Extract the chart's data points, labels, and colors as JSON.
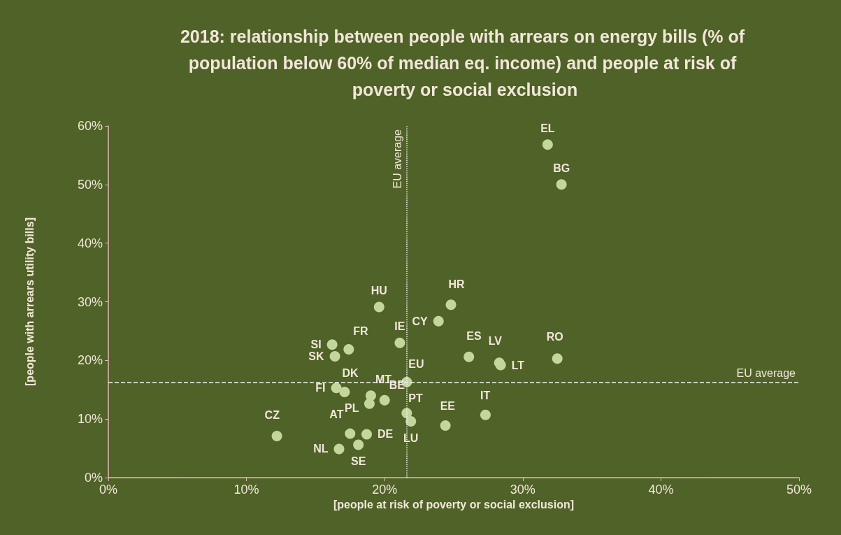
{
  "chart_data": {
    "type": "scatter",
    "title": "2018: relationship between people with arrears on energy bills (% of population below 60% of median eq. income) and people at risk of poverty or social exclusion",
    "xlabel": "[people at risk of poverty or social exclusion]",
    "ylabel": "[people with arrears utility bills]",
    "series": [
      {
        "color": "#c3d69b",
        "x": [
          31.8,
          32.8,
          24.8,
          19.6,
          23.9,
          21.1,
          16.2,
          17.4,
          16.4,
          26.1,
          28.3,
          28.4,
          32.5,
          21.6,
          16.5,
          17.1,
          19.0,
          18.9,
          20.0,
          21.6,
          21.9,
          24.4,
          27.3,
          12.2,
          17.5,
          18.7,
          18.1,
          16.7
        ],
        "values": [
          56.8,
          50.0,
          29.5,
          29.1,
          26.7,
          23.0,
          22.7,
          21.9,
          20.7,
          20.6,
          19.6,
          19.2,
          20.3,
          16.3,
          15.3,
          14.6,
          14.0,
          12.6,
          13.2,
          11.0,
          9.6,
          8.9,
          10.7,
          7.1,
          7.5,
          7.4,
          5.6,
          4.9
        ],
        "value_labels": [
          "EL",
          "BG",
          "HR",
          "HU",
          "CY",
          "IE",
          "SI",
          "FR",
          "SK",
          "ES",
          "LV",
          "LT",
          "RO",
          "EU",
          "FI",
          "DK",
          "MT",
          "PL",
          "BE",
          "PT",
          "LU",
          "EE",
          "IT",
          "CZ",
          "AT",
          "DE",
          "SE",
          "NL"
        ]
      }
    ],
    "xlim": [
      0,
      50
    ],
    "xticks": [
      {
        "value": 0,
        "label": "0%"
      },
      {
        "value": 10,
        "label": "10%"
      },
      {
        "value": 20,
        "label": "20%"
      },
      {
        "value": 30,
        "label": "30%"
      },
      {
        "value": 40,
        "label": "40%"
      },
      {
        "value": 50,
        "label": "50%"
      }
    ],
    "ylim": [
      0,
      60
    ],
    "yticks": [
      {
        "value": 0,
        "label": "0%"
      },
      {
        "value": 10,
        "label": "10%"
      },
      {
        "value": 20,
        "label": "20%"
      },
      {
        "value": 30,
        "label": "30%"
      },
      {
        "value": 40,
        "label": "40%"
      },
      {
        "value": 50,
        "label": "50%"
      },
      {
        "value": 60,
        "label": "60%"
      }
    ],
    "ref_lines": [
      {
        "axis": "x",
        "value": 21.6,
        "label": "EU average",
        "line_style": "dotted",
        "color": "#f2f2f2"
      },
      {
        "axis": "y",
        "value": 16.3,
        "label": "EU average",
        "line_style": "dashed",
        "color": "#f2f2f2"
      }
    ],
    "grid": false,
    "marker": "circle"
  }
}
